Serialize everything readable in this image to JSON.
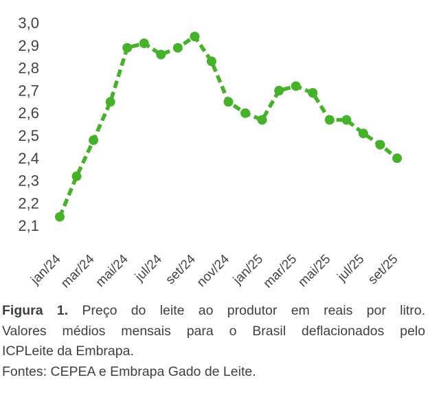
{
  "chart_data": {
    "type": "line",
    "title": "",
    "xlabel": "",
    "ylabel": "",
    "categories": [
      "jan/24",
      "fev/24",
      "mar/24",
      "abr/24",
      "mai/24",
      "jun/24",
      "jul/24",
      "ago/24",
      "set/24",
      "out/24",
      "nov/24",
      "dez/24",
      "jan/25",
      "fev/25",
      "mar/25",
      "abr/25",
      "mai/25",
      "jun/25",
      "jul/25",
      "ago/25",
      "set/25"
    ],
    "series": [
      {
        "name": "Preço do leite ao produtor (R$/litro)",
        "values": [
          2.14,
          2.32,
          2.48,
          2.65,
          2.89,
          2.91,
          2.86,
          2.89,
          2.94,
          2.83,
          2.65,
          2.6,
          2.57,
          2.7,
          2.72,
          2.69,
          2.57,
          2.57,
          2.51,
          2.46,
          2.4
        ]
      }
    ],
    "x_tick_labels": [
      "jan/24",
      "mar/24",
      "mai/24",
      "jul/24",
      "set/24",
      "nov/24",
      "jan/25",
      "mar/25",
      "mai/25",
      "jul/25",
      "set/25"
    ],
    "y_tick_labels": [
      "3,0",
      "2,9",
      "2,8",
      "2,7",
      "2,6",
      "2,5",
      "2,4",
      "2,3",
      "2,2",
      "2,1"
    ],
    "ylim": [
      2.1,
      3.0
    ],
    "grid": false,
    "legend": false,
    "line_color": "#45B22A",
    "line_style": "dashed",
    "marker": "circle"
  },
  "caption": {
    "heading": "Figura 1.",
    "line1": "Preço do leite ao produtor em reais por litro.",
    "line2": "Valores médios mensais para o Brasil deflacionados pelo",
    "line3": "ICPLeite da Embrapa.",
    "source": "Fontes: CEPEA e Embrapa Gado de Leite."
  }
}
